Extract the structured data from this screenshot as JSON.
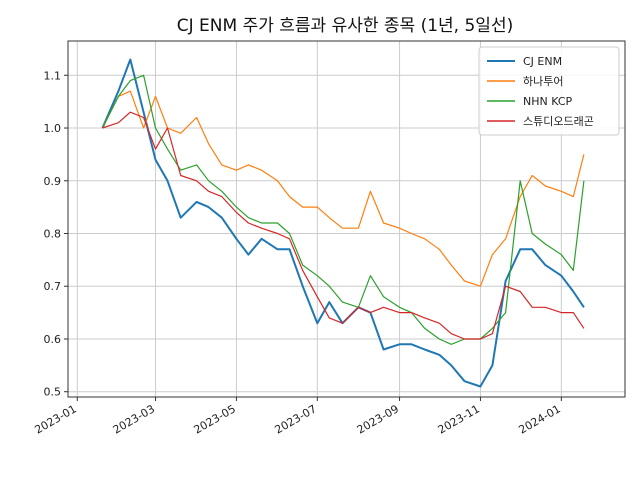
{
  "chart_data": {
    "type": "line",
    "title": "CJ ENM 주가 흐름과 유사한 종목 (1년, 5일선)",
    "xlabel": "",
    "ylabel": "",
    "x_ticks": [
      "2023-01",
      "2023-03",
      "2023-05",
      "2023-07",
      "2023-09",
      "2023-11",
      "2024-01"
    ],
    "y_ticks": [
      "0.5",
      "0.6",
      "0.7",
      "0.8",
      "0.9",
      "1.0",
      "1.1"
    ],
    "xlim": [
      "2022-12-25",
      "2024-02-18"
    ],
    "ylim": [
      0.49,
      1.165
    ],
    "grid": true,
    "legend_position": "top-right",
    "x": [
      "2023-01-20",
      "2023-02-01",
      "2023-02-10",
      "2023-02-20",
      "2023-03-01",
      "2023-03-10",
      "2023-03-20",
      "2023-04-01",
      "2023-04-10",
      "2023-04-20",
      "2023-05-01",
      "2023-05-10",
      "2023-05-20",
      "2023-06-01",
      "2023-06-10",
      "2023-06-20",
      "2023-07-01",
      "2023-07-10",
      "2023-07-20",
      "2023-08-01",
      "2023-08-10",
      "2023-08-20",
      "2023-09-01",
      "2023-09-10",
      "2023-09-20",
      "2023-10-01",
      "2023-10-10",
      "2023-10-20",
      "2023-11-01",
      "2023-11-10",
      "2023-11-20",
      "2023-12-01",
      "2023-12-10",
      "2023-12-20",
      "2024-01-01",
      "2024-01-10",
      "2024-01-18"
    ],
    "series": [
      {
        "name": "CJ ENM",
        "color": "#1f77b4",
        "values": [
          1.0,
          1.07,
          1.13,
          1.03,
          0.94,
          0.9,
          0.83,
          0.86,
          0.85,
          0.83,
          0.79,
          0.76,
          0.79,
          0.77,
          0.77,
          0.7,
          0.63,
          0.67,
          0.63,
          0.66,
          0.65,
          0.58,
          0.59,
          0.59,
          0.58,
          0.57,
          0.55,
          0.52,
          0.51,
          0.55,
          0.71,
          0.77,
          0.77,
          0.74,
          0.72,
          0.69,
          0.66
        ]
      },
      {
        "name": "하나투어",
        "color": "#ff7f0e",
        "values": [
          1.0,
          1.06,
          1.07,
          1.0,
          1.06,
          1.0,
          0.99,
          1.02,
          0.97,
          0.93,
          0.92,
          0.93,
          0.92,
          0.9,
          0.87,
          0.85,
          0.85,
          0.83,
          0.81,
          0.81,
          0.88,
          0.82,
          0.81,
          0.8,
          0.79,
          0.77,
          0.74,
          0.71,
          0.7,
          0.76,
          0.79,
          0.87,
          0.91,
          0.89,
          0.88,
          0.87,
          0.95
        ]
      },
      {
        "name": "NHN KCP",
        "color": "#2ca02c",
        "values": [
          1.0,
          1.06,
          1.09,
          1.1,
          1.0,
          0.96,
          0.92,
          0.93,
          0.9,
          0.88,
          0.85,
          0.83,
          0.82,
          0.82,
          0.8,
          0.74,
          0.72,
          0.7,
          0.67,
          0.66,
          0.72,
          0.68,
          0.66,
          0.65,
          0.62,
          0.6,
          0.59,
          0.6,
          0.6,
          0.62,
          0.65,
          0.9,
          0.8,
          0.78,
          0.76,
          0.73,
          0.9
        ]
      },
      {
        "name": "스튜디오드래곤",
        "color": "#d62728",
        "values": [
          1.0,
          1.01,
          1.03,
          1.02,
          0.96,
          1.0,
          0.91,
          0.9,
          0.88,
          0.87,
          0.84,
          0.82,
          0.81,
          0.8,
          0.79,
          0.73,
          0.68,
          0.64,
          0.63,
          0.66,
          0.65,
          0.66,
          0.65,
          0.65,
          0.64,
          0.63,
          0.61,
          0.6,
          0.6,
          0.61,
          0.7,
          0.69,
          0.66,
          0.66,
          0.65,
          0.65,
          0.62
        ]
      }
    ]
  }
}
